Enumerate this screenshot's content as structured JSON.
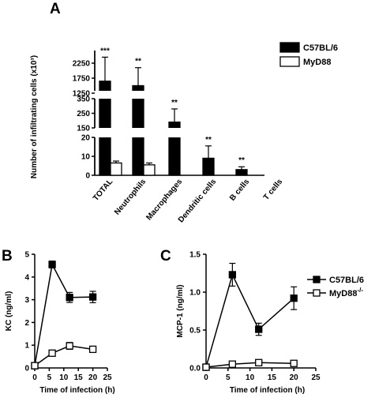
{
  "chart_data": [
    {
      "panel": "A",
      "type": "bar",
      "ylabel": "Number of infiltrating cells (x10³)",
      "categories": [
        "TOTAL",
        "Neutrophils",
        "Macrophages",
        "Dendritic cells",
        "B cells",
        "T cells"
      ],
      "y_axis_segments": [
        {
          "ticks": [
            0,
            10,
            20
          ]
        },
        {
          "ticks": [
            150,
            250,
            350
          ]
        },
        {
          "ticks": [
            1250,
            1750,
            2250
          ]
        }
      ],
      "series": [
        {
          "name": "C57BL/6",
          "fill": "#000000",
          "values": [
            1650,
            1500,
            190,
            9,
            3,
            0
          ],
          "errors": [
            800,
            600,
            90,
            6.5,
            1.5,
            0
          ]
        },
        {
          "name": "MyD88",
          "fill": "#ffffff",
          "values": [
            6.5,
            5.5,
            0,
            0,
            0,
            0
          ],
          "errors": [
            1.0,
            1.0,
            0,
            0,
            0,
            0
          ]
        }
      ],
      "annotations": [
        "***",
        "**",
        "**",
        "**",
        "**",
        ""
      ]
    },
    {
      "panel": "B",
      "type": "line",
      "xlabel": "Time of infection  (h)",
      "ylabel": "KC (ng/ml)",
      "xlim": [
        0,
        25
      ],
      "ylim": [
        0,
        5
      ],
      "xticks": [
        0,
        5,
        10,
        15,
        20,
        25
      ],
      "yticks": [
        0,
        1,
        2,
        3,
        4,
        5
      ],
      "series": [
        {
          "name": "C57BL/6",
          "marker": "filled-square",
          "x": [
            0,
            6,
            12,
            20
          ],
          "y": [
            0.1,
            4.55,
            3.1,
            3.12
          ],
          "err": [
            0.05,
            0.15,
            0.22,
            0.25
          ]
        },
        {
          "name": "MyD88-/-",
          "marker": "open-square",
          "x": [
            0,
            6,
            12,
            20
          ],
          "y": [
            0.1,
            0.65,
            0.97,
            0.82
          ],
          "err": [
            0.05,
            0.08,
            0.15,
            0.08
          ]
        }
      ]
    },
    {
      "panel": "C",
      "type": "line",
      "xlabel": "Time of infection  (h)",
      "ylabel": "MCP-1 (ng/ml)",
      "xlim": [
        0,
        25
      ],
      "ylim": [
        0,
        1.5
      ],
      "xticks": [
        0,
        5,
        10,
        15,
        20,
        25
      ],
      "yticks": [
        "0.0",
        "0.5",
        "1.0",
        "1.5"
      ],
      "series": [
        {
          "name": "C57BL/6",
          "marker": "filled-square",
          "x": [
            0,
            6,
            12,
            20
          ],
          "y": [
            0.01,
            1.23,
            0.51,
            0.92
          ],
          "err": [
            0.01,
            0.15,
            0.08,
            0.15
          ]
        },
        {
          "name": "MyD88-/-",
          "marker": "open-square",
          "x": [
            0,
            6,
            12,
            20
          ],
          "y": [
            0.01,
            0.05,
            0.07,
            0.06
          ],
          "err": [
            0.01,
            0.02,
            0.02,
            0.02
          ]
        }
      ]
    }
  ],
  "legend_A": [
    {
      "label": "C57BL/6",
      "fill": "#000000"
    },
    {
      "label": "MyD88",
      "fill": "#ffffff"
    }
  ],
  "legend_C": [
    {
      "label": "C57BL/6",
      "marker": "filled-square"
    },
    {
      "label": "MyD88",
      "sup": "-/-",
      "marker": "open-square"
    }
  ]
}
